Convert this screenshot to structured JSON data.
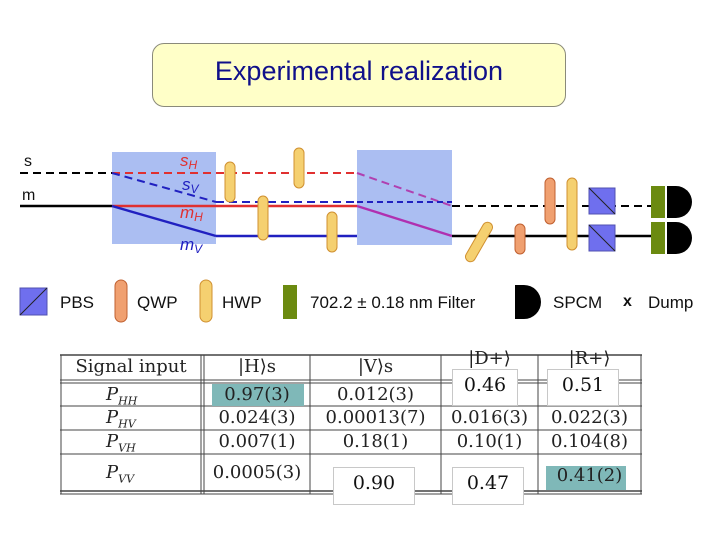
{
  "title": "Experimental realization",
  "setup": {
    "beam_labels": {
      "s_in": "s",
      "m_in": "m",
      "sH": "sH",
      "sV": "sV",
      "mH": "mH",
      "mV": "mV"
    },
    "dump_mark": "x"
  },
  "legend": {
    "pbs": "PBS",
    "qwp": "QWP",
    "hwp": "HWP",
    "filter": "702.2 ± 0.18 nm Filter",
    "spcm": "SPCM",
    "dump": "Dump"
  },
  "table": {
    "header": [
      "Signal input",
      "|H⟩s",
      "|V⟩s",
      "|D+⟩",
      "|R+⟩"
    ],
    "rows": [
      {
        "label": "P",
        "sub": "HH",
        "cells": [
          "0.97(3)",
          "0.012(3)",
          "",
          ""
        ]
      },
      {
        "label": "P",
        "sub": "HV",
        "cells": [
          "0.024(3)",
          "0.00013(7)",
          "0.016(3)",
          "0.022(3)"
        ]
      },
      {
        "label": "P",
        "sub": "VH",
        "cells": [
          "0.007(1)",
          "0.18(1)",
          "0.10(1)",
          "0.104(8)"
        ]
      },
      {
        "label": "P",
        "sub": "VV",
        "cells": [
          "0.0005(3)",
          "",
          "",
          "0.41(2)"
        ]
      }
    ],
    "overlays": {
      "d_hh": "0.46",
      "r_hh": "0.51",
      "v_vv": "0.90",
      "d_vv": "0.47"
    }
  },
  "colors": {
    "title_bg": "#ffffc8",
    "title_text": "#10108a",
    "pbs": "#6f6fee",
    "qwp": "#f0a070",
    "hwp": "#f5d070",
    "filter": "#6b8a10",
    "red_beam": "#e03030",
    "blue_beam": "#2020c0",
    "highlight": "#7fb8b8"
  }
}
